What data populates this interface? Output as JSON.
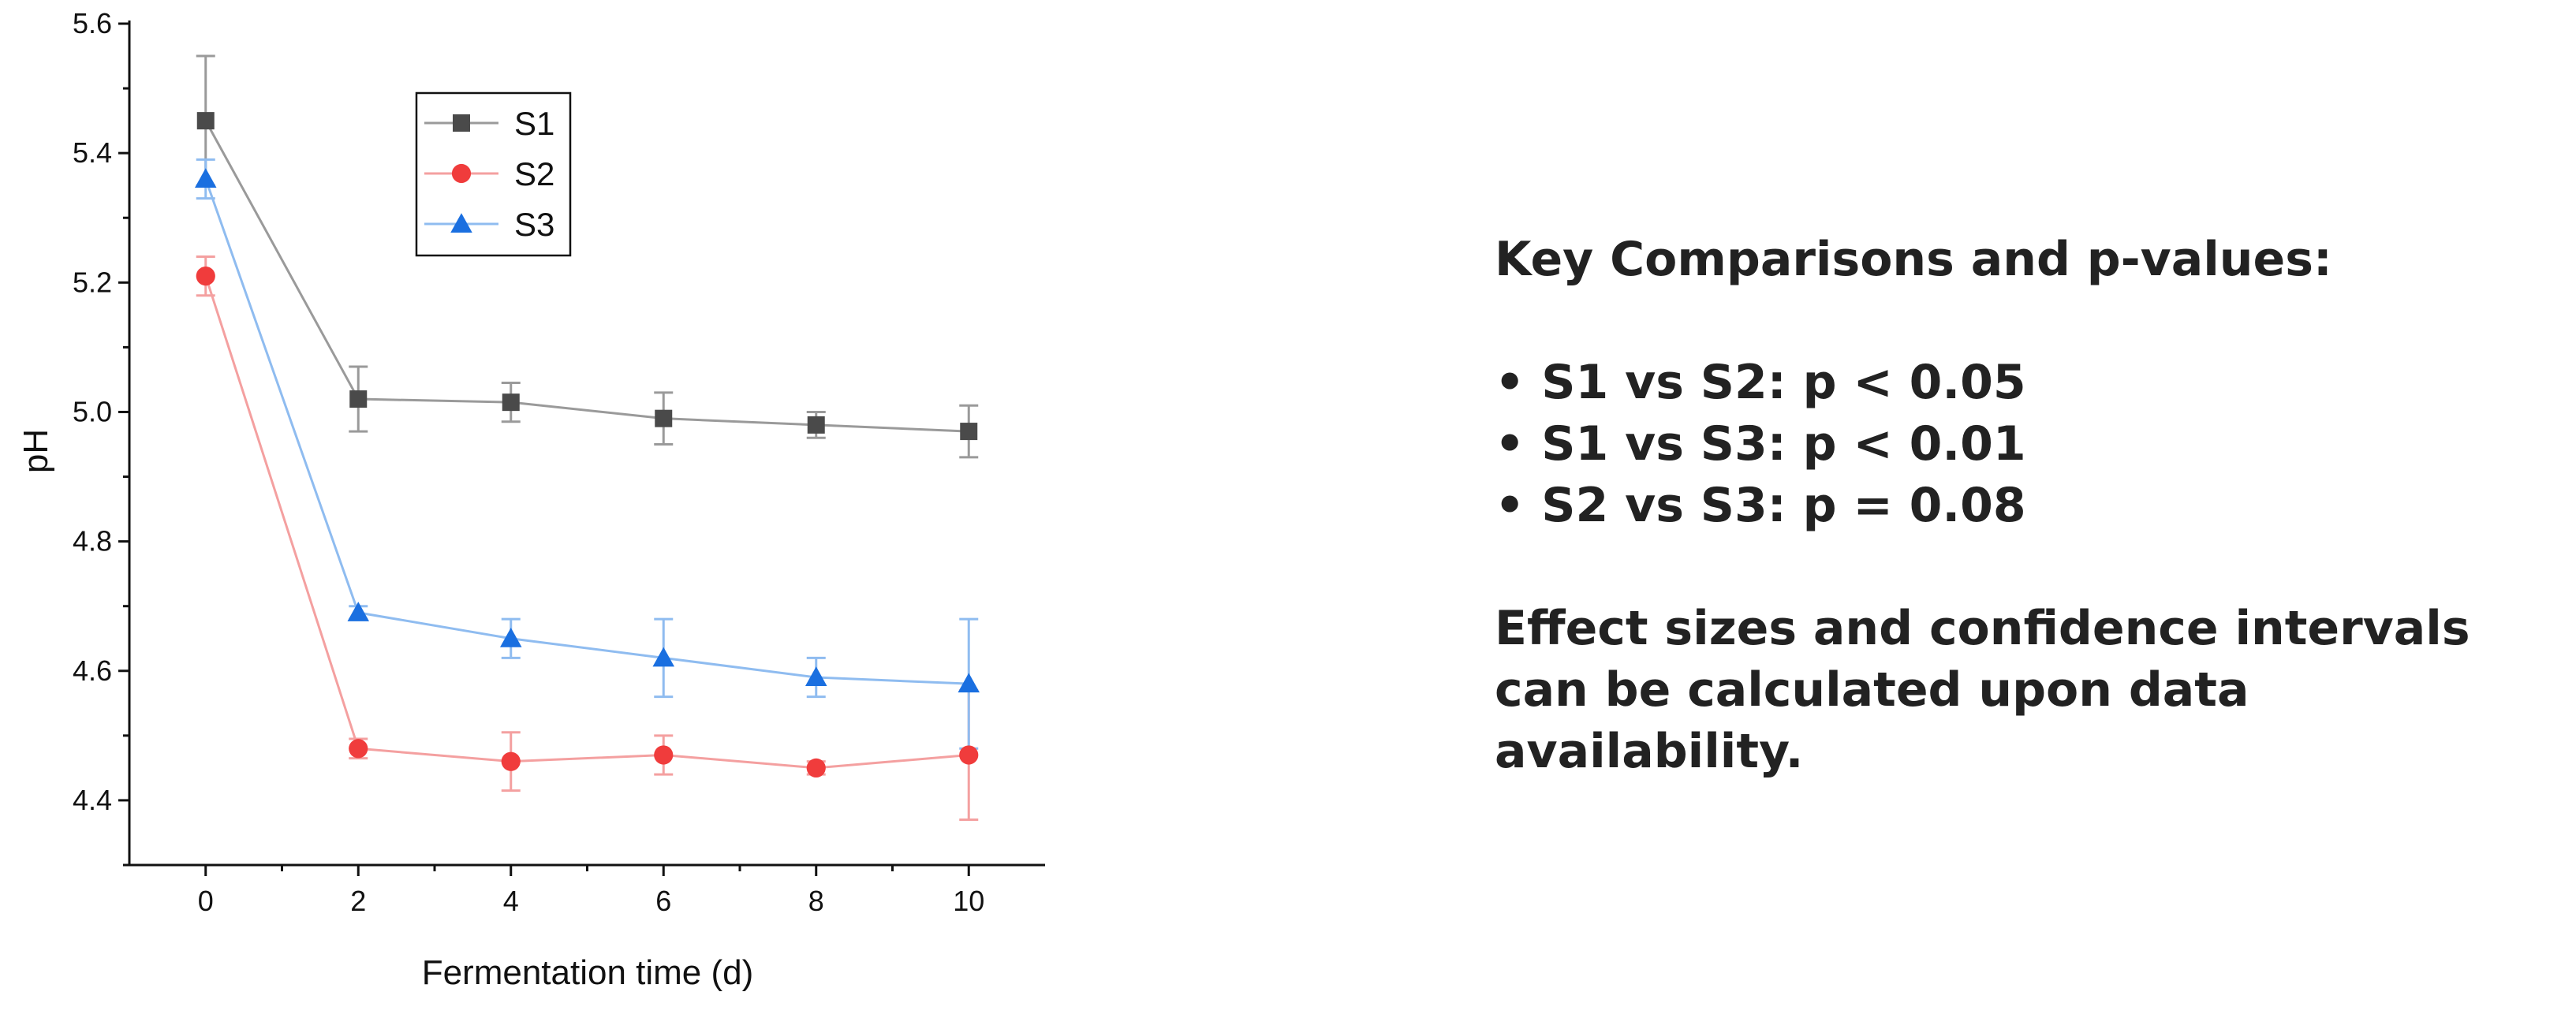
{
  "chart_data": {
    "type": "line",
    "x": [
      0,
      2,
      4,
      6,
      8,
      10
    ],
    "xlabel": "Fermentation time (d)",
    "ylabel": "pH",
    "xlim": [
      -1,
      11
    ],
    "ylim": [
      4.3,
      5.6
    ],
    "xticks": [
      "0",
      "2",
      "4",
      "6",
      "8",
      "10"
    ],
    "yticks": [
      "4.4",
      "4.6",
      "4.8",
      "5.0",
      "5.2",
      "5.4",
      "5.6"
    ],
    "grid": false,
    "legend_position": "top-left",
    "series": [
      {
        "name": "S1",
        "marker": "square",
        "color": "#4a4a4a",
        "line_color": "#9a9a9a",
        "values": [
          5.45,
          5.02,
          5.015,
          4.99,
          4.98,
          4.97
        ],
        "errors": [
          0.1,
          0.05,
          0.03,
          0.04,
          0.02,
          0.04
        ]
      },
      {
        "name": "S2",
        "marker": "circle",
        "color": "#f03c3c",
        "line_color": "#f4a0a0",
        "values": [
          5.21,
          4.48,
          4.46,
          4.47,
          4.45,
          4.47
        ],
        "errors": [
          0.03,
          0.015,
          0.045,
          0.03,
          0.01,
          0.1
        ]
      },
      {
        "name": "S3",
        "marker": "triangle",
        "color": "#1a6fe0",
        "line_color": "#8fbcf0",
        "values": [
          5.36,
          4.69,
          4.65,
          4.62,
          4.59,
          4.58
        ],
        "errors": [
          0.03,
          0.01,
          0.03,
          0.06,
          0.03,
          0.1
        ]
      }
    ]
  },
  "notes": {
    "heading": "Key Comparisons and p-values:",
    "comparisons": [
      "• S1 vs S2: p < 0.05",
      "• S1 vs S3: p < 0.01",
      "• S2 vs S3: p = 0.08"
    ],
    "footer": "Effect sizes and confidence intervals can be calculated upon data availability."
  }
}
